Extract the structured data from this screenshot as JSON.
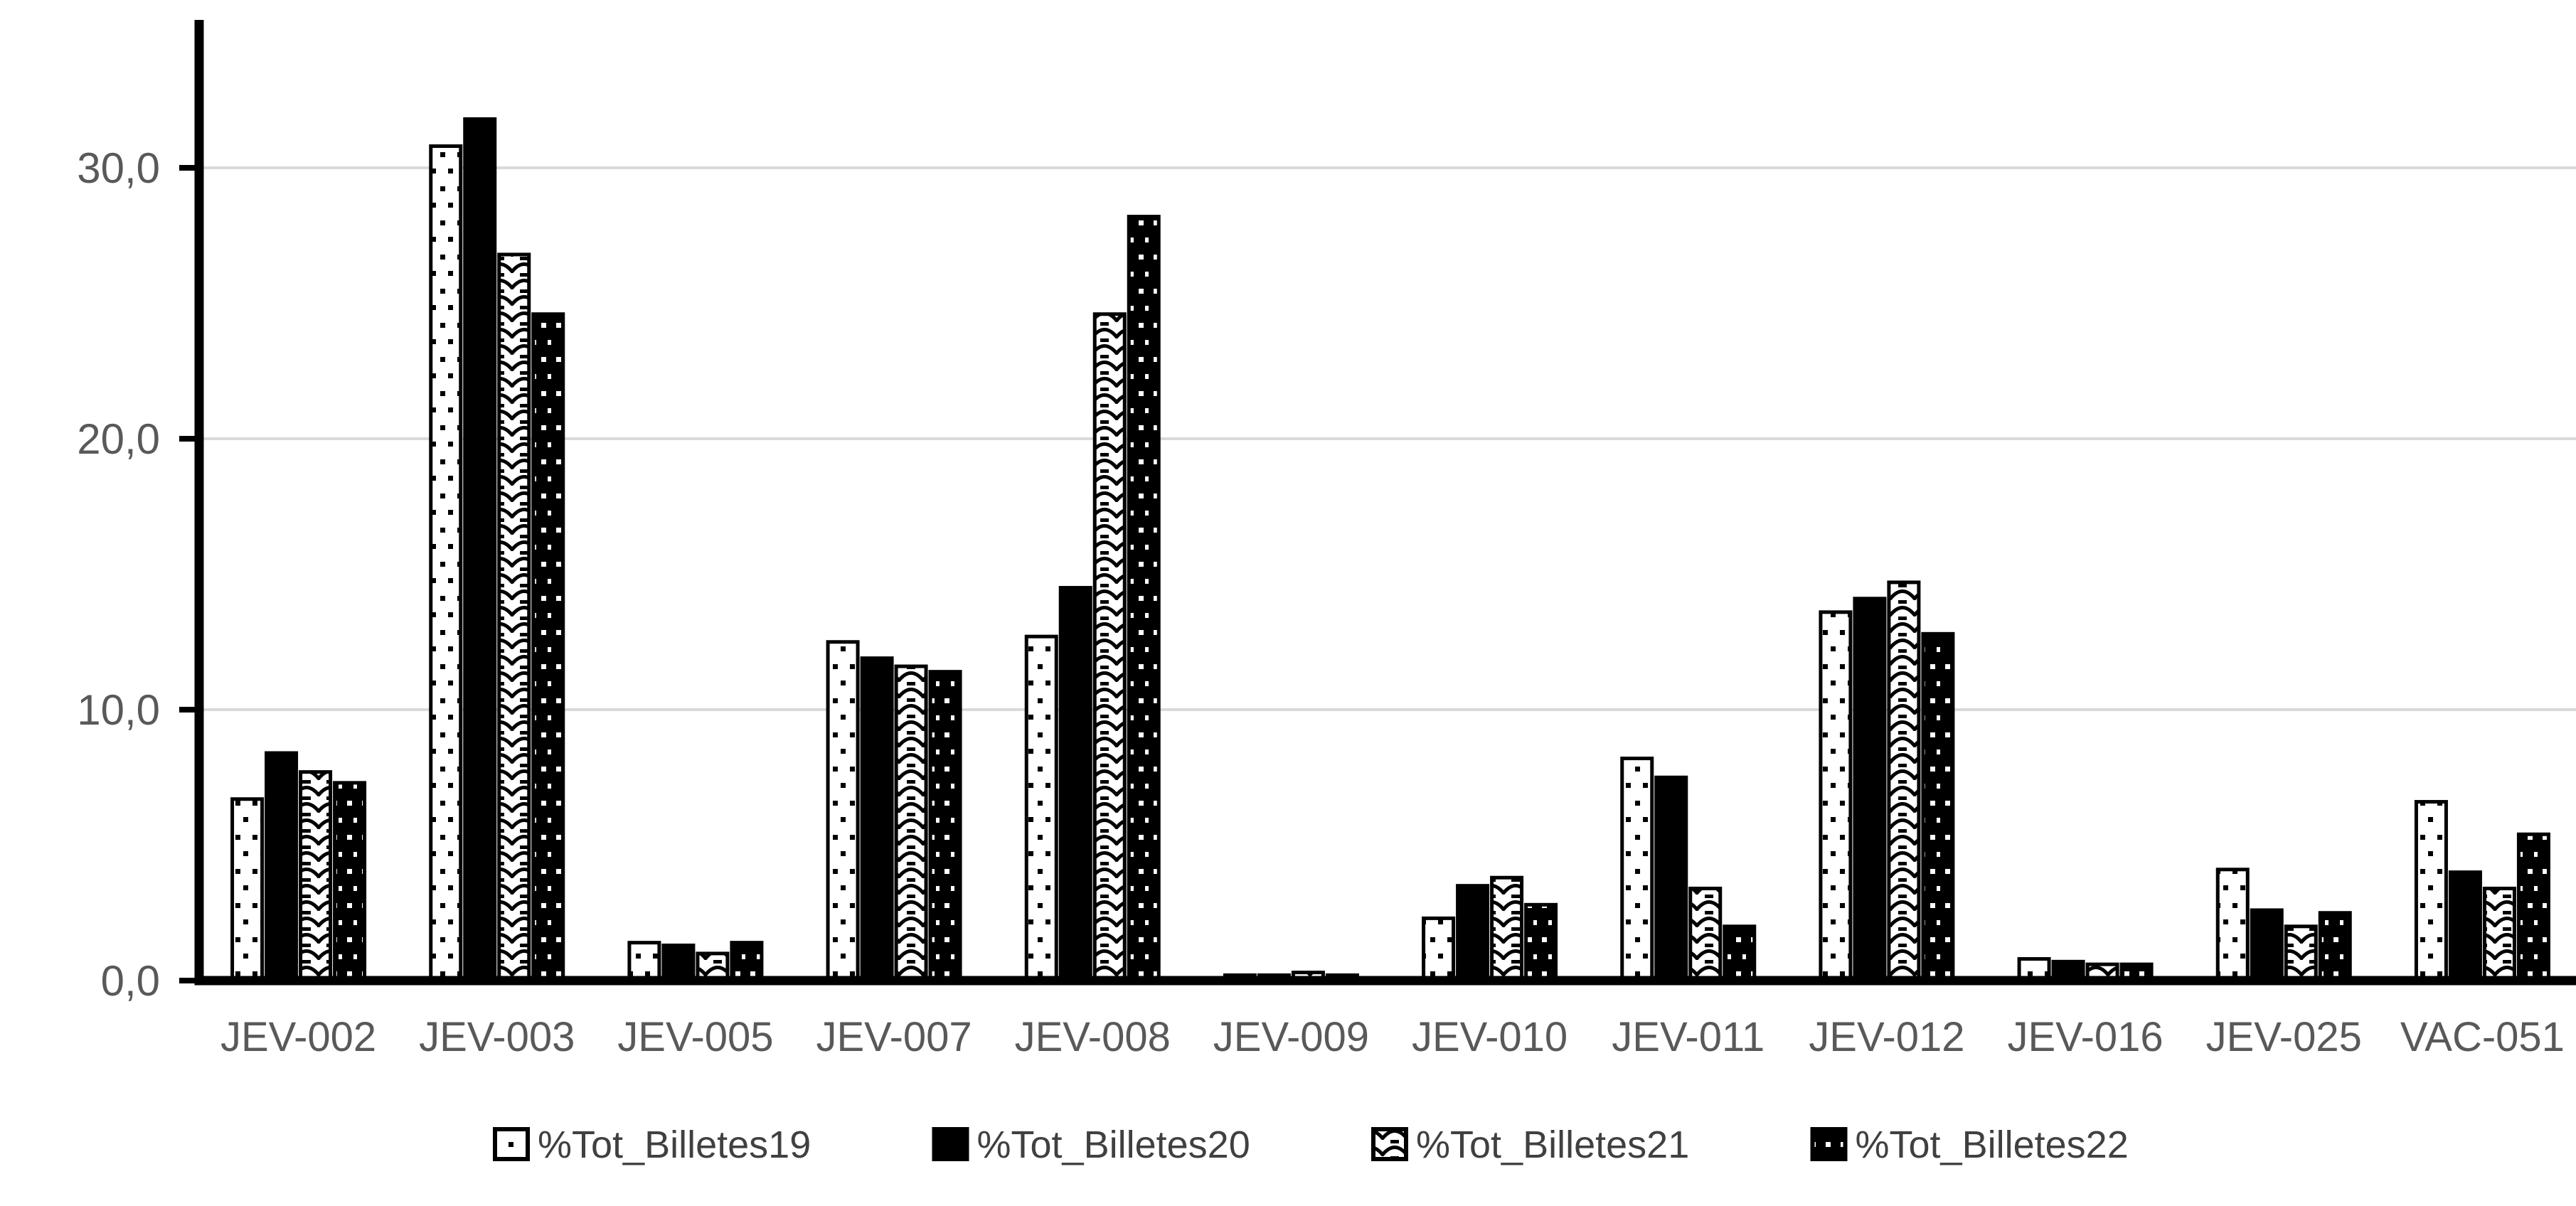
{
  "chart_data": {
    "type": "bar",
    "title": "",
    "xlabel": "",
    "ylabel": "",
    "categories": [
      "JEV-002",
      "JEV-003",
      "JEV-005",
      "JEV-007",
      "JEV-008",
      "JEV-009",
      "JEV-010",
      "JEV-011",
      "JEV-012",
      "JEV-016",
      "JEV-025",
      "VAC-051"
    ],
    "series": [
      {
        "name": "%Tot_Billetes19",
        "pattern": "white-sparse-black-dots",
        "values": [
          6.7,
          30.8,
          1.4,
          12.5,
          12.7,
          0.2,
          2.3,
          8.2,
          13.6,
          0.8,
          4.1,
          6.6
        ]
      },
      {
        "name": "%Tot_Billetes20",
        "pattern": "solid-black",
        "values": [
          8.4,
          31.8,
          1.3,
          11.9,
          14.5,
          0.2,
          3.5,
          7.5,
          14.1,
          0.7,
          2.6,
          4.0
        ]
      },
      {
        "name": "%Tot_Billetes21",
        "pattern": "white-scale-hatch",
        "values": [
          7.7,
          26.8,
          1.0,
          11.6,
          24.6,
          0.3,
          3.8,
          3.4,
          14.7,
          0.6,
          2.0,
          3.4
        ]
      },
      {
        "name": "%Tot_Billetes22",
        "pattern": "black-white-dots",
        "values": [
          7.3,
          24.6,
          1.4,
          11.4,
          28.2,
          0.2,
          2.8,
          2.0,
          12.8,
          0.6,
          2.5,
          5.4
        ]
      }
    ],
    "ylim": [
      0,
      35
    ],
    "yticks": [
      0,
      10,
      20,
      30
    ],
    "ytick_labels": [
      "0,0",
      "10,0",
      "20,0",
      "30,0"
    ],
    "grid": "horizontal-major",
    "legend_position": "bottom",
    "colors": {
      "bar_black": "#000000",
      "bar_white": "#ffffff",
      "axis_line": "#000000",
      "gridline": "#d9d9d9",
      "tick_label": "#595959",
      "category_label": "#595959",
      "legend_text": "#404040",
      "background": "#ffffff"
    }
  }
}
